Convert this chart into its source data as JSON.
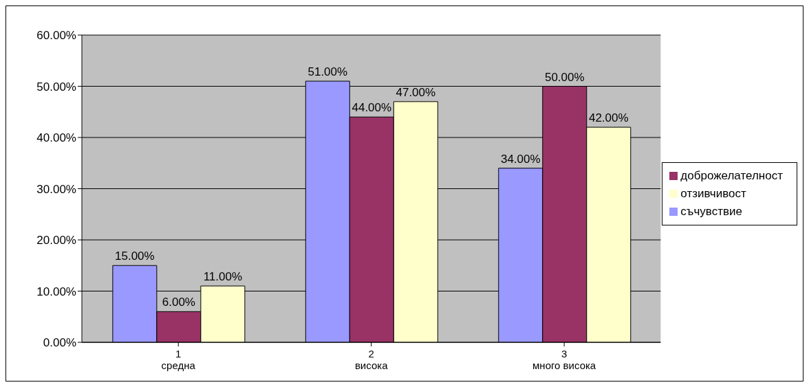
{
  "chart_data": {
    "type": "bar",
    "categories": [
      "1\nсредна",
      "2\nвисока",
      "3\nмного висока"
    ],
    "series": [
      {
        "name": "съчувствие",
        "color": "#9999ff",
        "values": [
          15,
          51,
          34
        ],
        "value_labels": [
          "15.00%",
          "51.00%",
          "34.00%"
        ]
      },
      {
        "name": "доброжелателност",
        "color": "#993366",
        "values": [
          6,
          44,
          50
        ],
        "value_labels": [
          "6.00%",
          "44.00%",
          "50.00%"
        ]
      },
      {
        "name": "отзивчивост",
        "color": "#ffffcc",
        "values": [
          11,
          47,
          42
        ],
        "value_labels": [
          "11.00%",
          "47.00%",
          "42.00%"
        ]
      }
    ],
    "ylim": [
      0,
      60
    ],
    "yticks": [
      {
        "value": 0,
        "label": "0.00%"
      },
      {
        "value": 10,
        "label": "10.00%"
      },
      {
        "value": 20,
        "label": "20.00%"
      },
      {
        "value": 30,
        "label": "30.00%"
      },
      {
        "value": 40,
        "label": "40.00%"
      },
      {
        "value": 50,
        "label": "50.00%"
      },
      {
        "value": 60,
        "label": "60.00%"
      }
    ],
    "grid": "y",
    "legend": "right"
  }
}
